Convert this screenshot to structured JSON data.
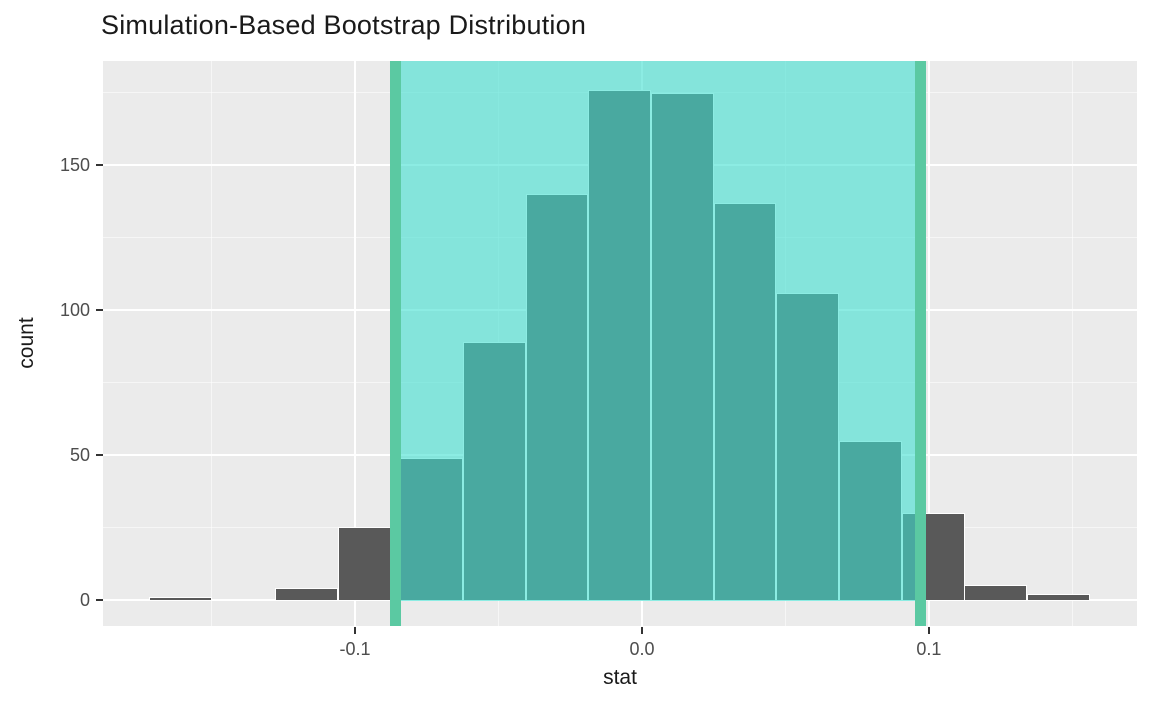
{
  "title": "Simulation-Based Bootstrap Distribution",
  "colors": {
    "panel_background": "#EBEBEB",
    "gridline": "#FFFFFF",
    "bar_fill": "#595959",
    "bar_border": "#FFFFFF",
    "shade_fill_rgba": "rgba(64,224,208,0.6)",
    "ci_line": "#5BC9A2",
    "tick_label": "#4D4D4D",
    "axis_title": "#1A1A1A"
  },
  "chart_data": {
    "type": "bar",
    "subtype": "histogram",
    "title": "Simulation-Based Bootstrap Distribution",
    "xlabel": "stat",
    "ylabel": "count",
    "bin_width": 0.02185,
    "bin_centers": [
      -0.1607,
      -0.1388,
      -0.117,
      -0.0951,
      -0.0733,
      -0.0514,
      -0.0296,
      -0.0078,
      0.0141,
      0.0359,
      0.0578,
      0.0796,
      0.1015,
      0.1233,
      0.1452
    ],
    "counts": [
      1,
      0,
      4,
      25,
      49,
      89,
      140,
      176,
      175,
      137,
      106,
      55,
      30,
      5,
      2
    ],
    "confidence_interval": {
      "lower": -0.086,
      "upper": 0.097
    },
    "x_ticks": {
      "values": [
        -0.1,
        0.0,
        0.1
      ],
      "labels": [
        "-0.1",
        "0.0",
        "0.1"
      ]
    },
    "x_minor_ticks": [
      -0.15,
      -0.05,
      0.05,
      0.15
    ],
    "y_ticks": {
      "values": [
        0,
        50,
        100,
        150
      ],
      "labels": [
        "0",
        "50",
        "100",
        "150"
      ]
    },
    "y_minor_ticks": [
      25,
      75,
      125,
      175
    ],
    "xlim": [
      -0.1878,
      0.1725
    ],
    "ylim": [
      -9,
      186
    ],
    "grid": "on",
    "legend": "none"
  }
}
